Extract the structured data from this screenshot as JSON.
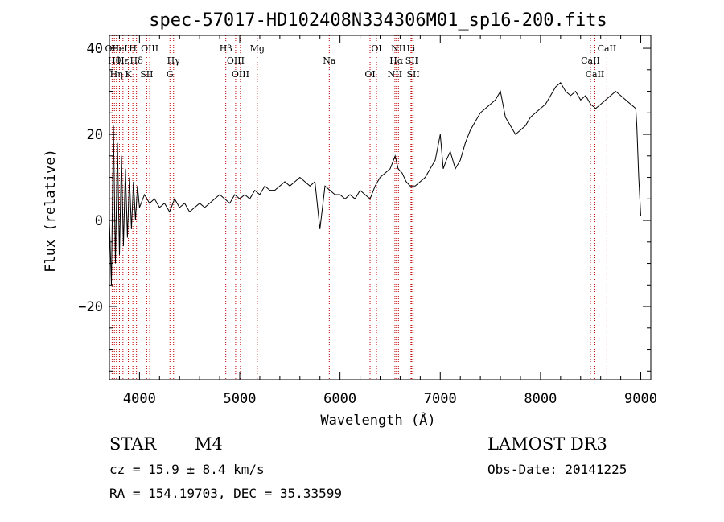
{
  "chart_data": {
    "type": "line",
    "title": "spec-57017-HD102408N334306M01_sp16-200.fits",
    "xlabel": "Wavelength (Å)",
    "ylabel": "Flux (relative)",
    "xlim": [
      3700,
      9100
    ],
    "ylim": [
      -37,
      43
    ],
    "xticks": [
      4000,
      5000,
      6000,
      7000,
      8000,
      9000
    ],
    "xtick_labels": [
      "4000",
      "5000",
      "6000",
      "7000",
      "8000",
      "9000"
    ],
    "yticks": [
      -20,
      0,
      20,
      40
    ],
    "ytick_labels": [
      "−20",
      "0",
      "20",
      "40"
    ],
    "grid": false,
    "series": [
      {
        "name": "spectrum",
        "color": "#000000",
        "x": [
          3700,
          3720,
          3740,
          3760,
          3780,
          3800,
          3820,
          3840,
          3860,
          3880,
          3900,
          3920,
          3940,
          3960,
          3980,
          4000,
          4050,
          4100,
          4150,
          4200,
          4250,
          4300,
          4350,
          4400,
          4450,
          4500,
          4550,
          4600,
          4650,
          4700,
          4750,
          4800,
          4850,
          4900,
          4950,
          5000,
          5050,
          5100,
          5150,
          5200,
          5250,
          5300,
          5350,
          5400,
          5450,
          5500,
          5550,
          5600,
          5650,
          5700,
          5750,
          5800,
          5850,
          5900,
          5950,
          6000,
          6050,
          6100,
          6150,
          6200,
          6250,
          6300,
          6350,
          6400,
          6450,
          6500,
          6550,
          6580,
          6620,
          6660,
          6700,
          6750,
          6800,
          6850,
          6900,
          6950,
          7000,
          7030,
          7060,
          7100,
          7150,
          7200,
          7250,
          7300,
          7350,
          7400,
          7450,
          7500,
          7550,
          7600,
          7650,
          7700,
          7750,
          7800,
          7850,
          7900,
          7950,
          8000,
          8050,
          8100,
          8150,
          8200,
          8250,
          8300,
          8350,
          8400,
          8450,
          8500,
          8550,
          8600,
          8650,
          8700,
          8750,
          8800,
          8850,
          8900,
          8950,
          8960,
          8980,
          9000
        ],
        "y": [
          0,
          -15,
          22,
          -10,
          18,
          -8,
          15,
          -6,
          12,
          -4,
          10,
          -2,
          9,
          0,
          8,
          3,
          6,
          4,
          5,
          3,
          4,
          2,
          5,
          3,
          4,
          2,
          3,
          4,
          3,
          4,
          5,
          6,
          5,
          4,
          6,
          5,
          6,
          5,
          7,
          6,
          8,
          7,
          7,
          8,
          9,
          8,
          9,
          10,
          9,
          8,
          9,
          -2,
          8,
          7,
          6,
          6,
          5,
          6,
          5,
          7,
          6,
          5,
          8,
          10,
          11,
          12,
          15,
          12,
          11,
          9,
          8,
          8,
          9,
          10,
          12,
          14,
          20,
          12,
          14,
          16,
          12,
          14,
          18,
          21,
          23,
          25,
          26,
          27,
          28,
          30,
          24,
          22,
          20,
          21,
          22,
          24,
          25,
          26,
          27,
          29,
          31,
          32,
          30,
          29,
          30,
          28,
          29,
          27,
          26,
          27,
          28,
          29,
          30,
          29,
          28,
          27,
          26,
          22,
          10,
          1
        ]
      }
    ],
    "annotations": [
      {
        "text": "OII",
        "x": 3727
      },
      {
        "text": "Hθ",
        "x": 3750
      },
      {
        "text": "Hη",
        "x": 3770
      },
      {
        "text": "HeI",
        "x": 3800
      },
      {
        "text": "Hε",
        "x": 3835
      },
      {
        "text": "K",
        "x": 3889
      },
      {
        "text": "H",
        "x": 3934
      },
      {
        "text": "Hδ",
        "x": 3970
      },
      {
        "text": "SII",
        "x": 4072
      },
      {
        "text": "OIII",
        "x": 4102
      },
      {
        "text": "Hγ",
        "x": 4340
      },
      {
        "text": "G",
        "x": 4304
      },
      {
        "text": "Hβ",
        "x": 4861
      },
      {
        "text": "OIII",
        "x": 4959
      },
      {
        "text": "OIII",
        "x": 5007
      },
      {
        "text": "Mg",
        "x": 5175
      },
      {
        "text": "Na",
        "x": 5893
      },
      {
        "text": "OI",
        "x": 6300
      },
      {
        "text": "OI",
        "x": 6364
      },
      {
        "text": "Hα",
        "x": 6563
      },
      {
        "text": "NII",
        "x": 6548
      },
      {
        "text": "NII",
        "x": 6583
      },
      {
        "text": "SII",
        "x": 6716
      },
      {
        "text": "SII",
        "x": 6730
      },
      {
        "text": "Li",
        "x": 6708
      },
      {
        "text": "CaII",
        "x": 8498
      },
      {
        "text": "CaII",
        "x": 8542
      },
      {
        "text": "CaII",
        "x": 8662
      }
    ]
  },
  "info": {
    "class": "STAR",
    "subclass": "M4",
    "survey": "LAMOST DR3",
    "cz": "cz = 15.9 ± 8.4 km/s",
    "obs_date": "Obs-Date: 20141225",
    "coords": "RA = 154.19703, DEC =  35.33599"
  }
}
